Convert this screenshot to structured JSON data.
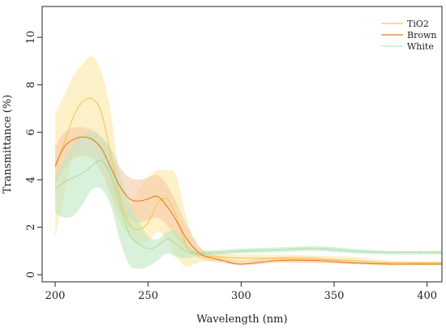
{
  "chart_data": {
    "type": "line",
    "xlabel": "Wavelength (nm)",
    "ylabel": "Transmittance (%)",
    "xlim": [
      193,
      408
    ],
    "ylim": [
      -0.3,
      11.3
    ],
    "xticks": [
      200,
      250,
      300,
      350,
      400
    ],
    "yticks": [
      0,
      2,
      4,
      6,
      8,
      10
    ],
    "grid": false,
    "legend_position": "top-right",
    "series": [
      {
        "name": "TiO2",
        "color": "#F2C94C",
        "band_color": "#FBE7A6",
        "line_style": "solid",
        "x": [
          200,
          205,
          210,
          215,
          220,
          225,
          230,
          235,
          240,
          245,
          250,
          255,
          260,
          265,
          270,
          275,
          280,
          290,
          300,
          320,
          340,
          360,
          380,
          400,
          408
        ],
        "y": [
          4.5,
          5.6,
          6.7,
          7.3,
          7.4,
          6.8,
          5.0,
          3.2,
          2.1,
          1.9,
          2.2,
          3.0,
          3.2,
          2.5,
          1.3,
          0.9,
          0.8,
          0.75,
          0.7,
          0.7,
          0.65,
          0.6,
          0.5,
          0.5,
          0.5
        ],
        "lower": [
          1.5,
          3.5,
          5.1,
          5.7,
          5.7,
          5.0,
          3.2,
          2.2,
          1.6,
          1.3,
          1.4,
          1.8,
          1.5,
          0.8,
          0.35,
          0.45,
          0.55,
          0.55,
          0.55,
          0.55,
          0.5,
          0.45,
          0.4,
          0.4,
          0.4
        ],
        "upper": [
          6.8,
          7.6,
          8.4,
          8.9,
          9.2,
          8.5,
          6.8,
          4.0,
          3.0,
          3.6,
          4.1,
          4.4,
          4.4,
          4.2,
          2.6,
          1.4,
          1.05,
          0.9,
          0.85,
          0.85,
          0.8,
          0.75,
          0.6,
          0.55,
          0.55
        ]
      },
      {
        "name": "Brown",
        "color": "#E67E22",
        "band_color": "#F7C9A4",
        "line_style": "solid",
        "x": [
          200,
          205,
          210,
          215,
          220,
          225,
          230,
          235,
          240,
          245,
          250,
          255,
          260,
          265,
          270,
          275,
          280,
          290,
          300,
          320,
          340,
          360,
          380,
          400,
          408
        ],
        "y": [
          4.6,
          5.4,
          5.7,
          5.8,
          5.7,
          5.3,
          4.5,
          3.7,
          3.2,
          3.1,
          3.2,
          3.3,
          2.9,
          2.3,
          1.6,
          1.1,
          0.8,
          0.6,
          0.45,
          0.6,
          0.6,
          0.5,
          0.45,
          0.45,
          0.45
        ],
        "lower": [
          3.8,
          4.5,
          4.9,
          5.0,
          4.9,
          4.3,
          3.4,
          2.6,
          2.3,
          2.2,
          2.3,
          2.4,
          2.1,
          1.6,
          1.1,
          0.8,
          0.65,
          0.5,
          0.4,
          0.5,
          0.5,
          0.45,
          0.4,
          0.4,
          0.4
        ],
        "upper": [
          5.4,
          6.0,
          6.2,
          6.2,
          6.1,
          5.8,
          5.3,
          4.5,
          4.1,
          4.0,
          4.1,
          4.2,
          3.8,
          3.1,
          2.2,
          1.5,
          1.0,
          0.75,
          0.6,
          0.75,
          0.75,
          0.6,
          0.55,
          0.55,
          0.55
        ]
      },
      {
        "name": "White",
        "color": "#7FCF7F",
        "band_color": "#BFE6BF",
        "line_style": "dotted",
        "x": [
          200,
          205,
          210,
          215,
          220,
          225,
          230,
          235,
          240,
          245,
          250,
          255,
          260,
          265,
          270,
          275,
          280,
          290,
          300,
          320,
          340,
          360,
          380,
          400,
          408
        ],
        "y": [
          3.6,
          3.9,
          4.1,
          4.3,
          4.6,
          4.8,
          4.2,
          2.9,
          1.7,
          1.3,
          1.1,
          1.2,
          1.5,
          1.3,
          1.0,
          0.9,
          0.9,
          0.95,
          1.0,
          1.05,
          1.1,
          1.0,
          0.95,
          0.95,
          0.95
        ],
        "lower": [
          2.6,
          2.4,
          2.5,
          3.0,
          3.6,
          3.6,
          2.9,
          1.4,
          0.4,
          0.25,
          0.35,
          0.6,
          0.9,
          0.75,
          0.7,
          0.75,
          0.8,
          0.85,
          0.9,
          0.95,
          1.0,
          0.9,
          0.85,
          0.85,
          0.85
        ],
        "upper": [
          4.1,
          4.9,
          5.5,
          5.9,
          6.0,
          5.8,
          5.2,
          4.2,
          3.0,
          2.3,
          1.6,
          1.5,
          1.8,
          1.8,
          1.3,
          1.05,
          1.0,
          1.05,
          1.1,
          1.15,
          1.2,
          1.1,
          1.0,
          1.0,
          1.0
        ]
      }
    ]
  }
}
